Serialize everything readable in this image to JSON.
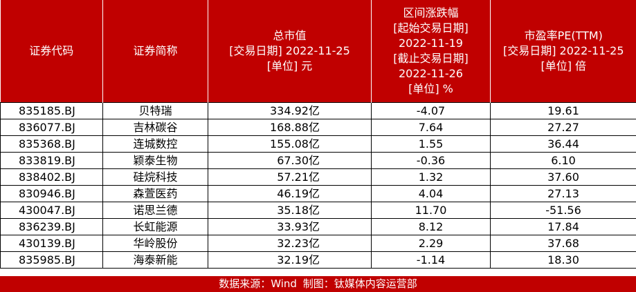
{
  "header": {
    "code": [
      "证券代码"
    ],
    "name": [
      "证券简称"
    ],
    "cap": [
      "总市值",
      "[交易日期] 2022-11-25",
      "[单位] 元"
    ],
    "chg": [
      "区间涨跌幅",
      "[起始交易日期]",
      "2022-11-19",
      "[截止交易日期]",
      "2022-11-26",
      "[单位] %"
    ],
    "pe": [
      "市盈率PE(TTM)",
      "[交易日期] 2022-11-25",
      "[单位] 倍"
    ]
  },
  "rows": [
    {
      "code": "835185.BJ",
      "name": "贝特瑞",
      "cap": "334.92亿",
      "chg": "-4.07",
      "pe": "19.61"
    },
    {
      "code": "836077.BJ",
      "name": "吉林碳谷",
      "cap": "168.88亿",
      "chg": "7.64",
      "pe": "27.27"
    },
    {
      "code": "835368.BJ",
      "name": "连城数控",
      "cap": "155.08亿",
      "chg": "1.55",
      "pe": "36.44"
    },
    {
      "code": "833819.BJ",
      "name": "颖泰生物",
      "cap": "67.30亿",
      "chg": "-0.36",
      "pe": "6.10"
    },
    {
      "code": "838402.BJ",
      "name": "硅烷科技",
      "cap": "57.21亿",
      "chg": "1.32",
      "pe": "37.60"
    },
    {
      "code": "830946.BJ",
      "name": "森萱医药",
      "cap": "46.19亿",
      "chg": "4.04",
      "pe": "27.13"
    },
    {
      "code": "430047.BJ",
      "name": "诺思兰德",
      "cap": "35.18亿",
      "chg": "11.70",
      "pe": "-51.56"
    },
    {
      "code": "836239.BJ",
      "name": "长虹能源",
      "cap": "33.93亿",
      "chg": "8.12",
      "pe": "17.84"
    },
    {
      "code": "430139.BJ",
      "name": "华岭股份",
      "cap": "32.23亿",
      "chg": "2.29",
      "pe": "37.68"
    },
    {
      "code": "835985.BJ",
      "name": "海泰新能",
      "cap": "32.19亿",
      "chg": "-1.14",
      "pe": "18.30"
    }
  ],
  "footer": {
    "source": "数据来源：Wind",
    "maker": "制图：钛媒体内容运营部"
  }
}
